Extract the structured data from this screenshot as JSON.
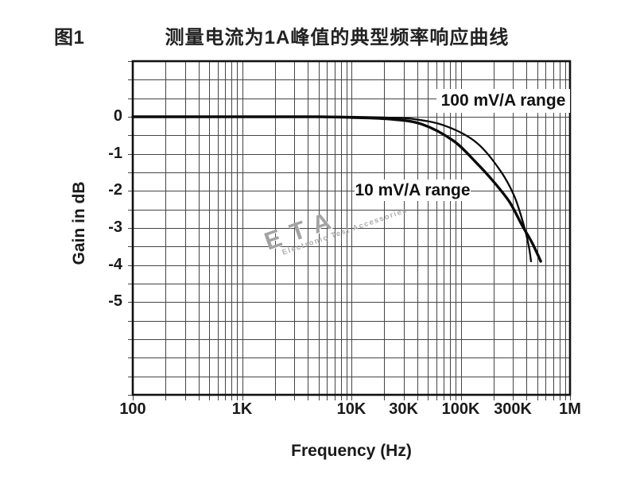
{
  "figure": {
    "label": "图1",
    "title": "测量电流为1A峰值的典型频率响应曲线"
  },
  "watermark": {
    "name": "ETA",
    "tagline": "Electronic Test Accessories"
  },
  "colors": {
    "grid": "#454545",
    "border": "#111111",
    "curve": "#0b0b0b",
    "text": "#1a1a1a",
    "watermark_gray": "#a3a3a3"
  },
  "chart_data": {
    "type": "line",
    "title": "测量电流为1A峰值的典型频率响应曲线",
    "xlabel": "Frequency (Hz)",
    "ylabel": "Gain in dB",
    "x_scale": "log",
    "xlim": [
      100,
      1000000
    ],
    "ylim": [
      -7.5,
      1.5
    ],
    "grid": {
      "on": true,
      "y_step_db": 0.5,
      "x_minor_log": true
    },
    "legend_position": "inline-annotations",
    "x_ticks": [
      {
        "label": "100",
        "value": 100
      },
      {
        "label": "1K",
        "value": 1000
      },
      {
        "label": "10K",
        "value": 10000
      },
      {
        "label": "30K",
        "value": 30000
      },
      {
        "label": "100K",
        "value": 100000
      },
      {
        "label": "300K",
        "value": 300000
      },
      {
        "label": "1M",
        "value": 1000000
      }
    ],
    "y_ticks": [
      {
        "label": "0",
        "value": 0
      },
      {
        "label": "-1",
        "value": -1
      },
      {
        "label": "-2",
        "value": -2
      },
      {
        "label": "-3",
        "value": -3
      },
      {
        "label": "-4",
        "value": -4
      },
      {
        "label": "-5",
        "value": -5
      }
    ],
    "series": [
      {
        "name": "100 mV/A range",
        "points": [
          [
            100,
            0
          ],
          [
            1000,
            0
          ],
          [
            5000,
            0
          ],
          [
            10000,
            0
          ],
          [
            20000,
            -0.02
          ],
          [
            37000,
            -0.06
          ],
          [
            73000,
            -0.25
          ],
          [
            140000,
            -0.7
          ],
          [
            230000,
            -1.45
          ],
          [
            310000,
            -2.15
          ],
          [
            380000,
            -2.95
          ],
          [
            420000,
            -3.5
          ],
          [
            440000,
            -3.9
          ]
        ]
      },
      {
        "name": "10 mV/A range",
        "points": [
          [
            100,
            0
          ],
          [
            1000,
            0
          ],
          [
            5000,
            0
          ],
          [
            10000,
            -0.02
          ],
          [
            22000,
            -0.06
          ],
          [
            44000,
            -0.2
          ],
          [
            86000,
            -0.65
          ],
          [
            140000,
            -1.25
          ],
          [
            200000,
            -1.75
          ],
          [
            280000,
            -2.3
          ],
          [
            360000,
            -2.9
          ],
          [
            450000,
            -3.4
          ],
          [
            540000,
            -3.9
          ]
        ]
      }
    ],
    "annotations": [
      {
        "label": "100 mV/A range",
        "series": "100 mV/A range"
      },
      {
        "label": "10 mV/A range",
        "series": "10 mV/A range"
      }
    ]
  }
}
